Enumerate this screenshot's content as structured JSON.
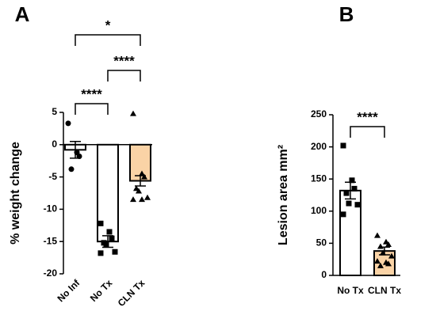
{
  "chart_data": [
    {
      "type": "bar",
      "panel": "A",
      "ylabel": "% weight change",
      "categories": [
        "No Inf",
        "No Tx",
        "CLN Tx"
      ],
      "values": [
        -0.8,
        -15,
        -5.6
      ],
      "errors": [
        1.3,
        0.9,
        0.8
      ],
      "colors": [
        "#ffffff",
        "#ffffff",
        "#fad3a6"
      ],
      "markers": [
        "circle",
        "square",
        "triangle"
      ],
      "points": [
        [
          3.3,
          -1.2,
          -1.8,
          -3.8
        ],
        [
          -12.2,
          -13.5,
          -14.5,
          -15.2,
          -15.5,
          -16.6,
          -16.8
        ],
        [
          4.8,
          -4.5,
          -5,
          -6.8,
          -7.2,
          -8.2,
          -8.5,
          -8.5
        ]
      ],
      "ylim": [
        -20,
        5
      ],
      "yticks": [
        -20,
        -15,
        -10,
        -5,
        0,
        5
      ],
      "xtick_rotation": -45,
      "significance": [
        {
          "from": 0,
          "to": 1,
          "label": "****"
        },
        {
          "from": 1,
          "to": 2,
          "label": "****"
        },
        {
          "from": 0,
          "to": 2,
          "label": "*"
        }
      ]
    },
    {
      "type": "bar",
      "panel": "B",
      "ylabel": "Lesion area mm²",
      "categories": [
        "No Tx",
        "CLN Tx"
      ],
      "values": [
        132,
        38
      ],
      "errors": [
        13,
        6
      ],
      "colors": [
        "#ffffff",
        "#fad3a6"
      ],
      "markers": [
        "square",
        "triangle"
      ],
      "points": [
        [
          202,
          148,
          135,
          128,
          112,
          110,
          95
        ],
        [
          62,
          52,
          48,
          45,
          35,
          30,
          22,
          20,
          18,
          15
        ]
      ],
      "ylim": [
        0,
        250
      ],
      "yticks": [
        0,
        50,
        100,
        150,
        200,
        250
      ],
      "xtick_rotation": 0,
      "significance": [
        {
          "from": 0,
          "to": 1,
          "label": "****"
        }
      ]
    }
  ]
}
